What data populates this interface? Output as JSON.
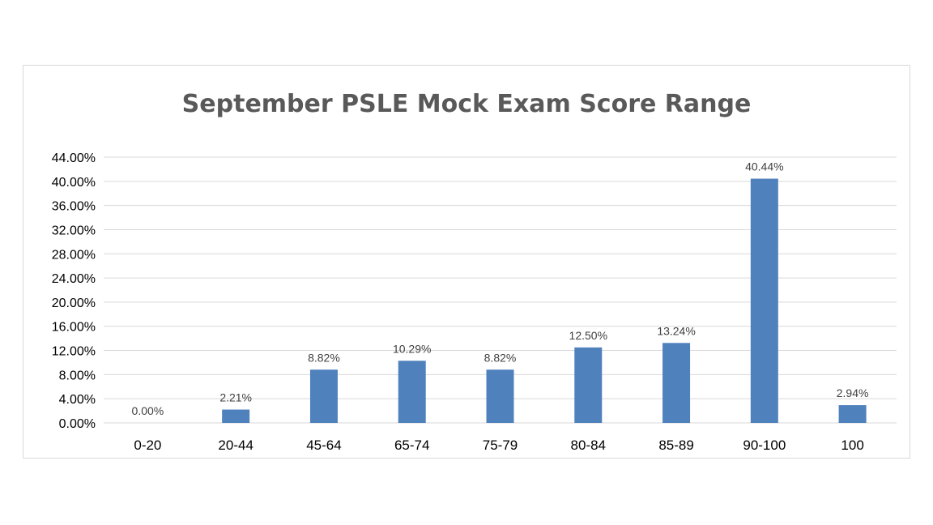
{
  "chart_data": {
    "type": "bar",
    "title": "September PSLE Mock Exam Score Range",
    "categories": [
      "0-20",
      "20-44",
      "45-64",
      "65-74",
      "75-79",
      "80-84",
      "85-89",
      "90-100",
      "100"
    ],
    "values": [
      0.0,
      2.21,
      8.82,
      10.29,
      8.82,
      12.5,
      13.24,
      40.44,
      2.94
    ],
    "data_labels": [
      "0.00%",
      "2.21%",
      "8.82%",
      "10.29%",
      "8.82%",
      "12.50%",
      "13.24%",
      "40.44%",
      "2.94%"
    ],
    "ylim": [
      0,
      44
    ],
    "yticks": [
      0,
      4,
      8,
      12,
      16,
      20,
      24,
      28,
      32,
      36,
      40,
      44
    ],
    "ytick_labels": [
      "0.00%",
      "4.00%",
      "8.00%",
      "12.00%",
      "16.00%",
      "20.00%",
      "24.00%",
      "28.00%",
      "32.00%",
      "36.00%",
      "40.00%",
      "44.00%"
    ],
    "xlabel": "",
    "ylabel": "",
    "grid": true,
    "legend": "none",
    "bar_color": "#4f81bd"
  }
}
